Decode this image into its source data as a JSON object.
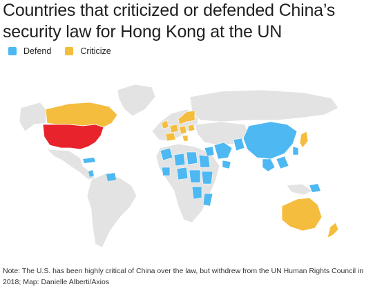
{
  "title": "Countries that criticized or defended China’s security law for Hong Kong at the UN",
  "legend": [
    {
      "label": "Defend",
      "color": "#4db8f2"
    },
    {
      "label": "Criticize",
      "color": "#f5bd3d"
    }
  ],
  "highlight_color": "#e8232b",
  "land_color": "#e3e3e3",
  "note": "Note: The U.S. has been highly critical of China over the law, but withdrew from the UN Human Rights Council in 2018; Map: Danielle Alberti/Axios"
}
